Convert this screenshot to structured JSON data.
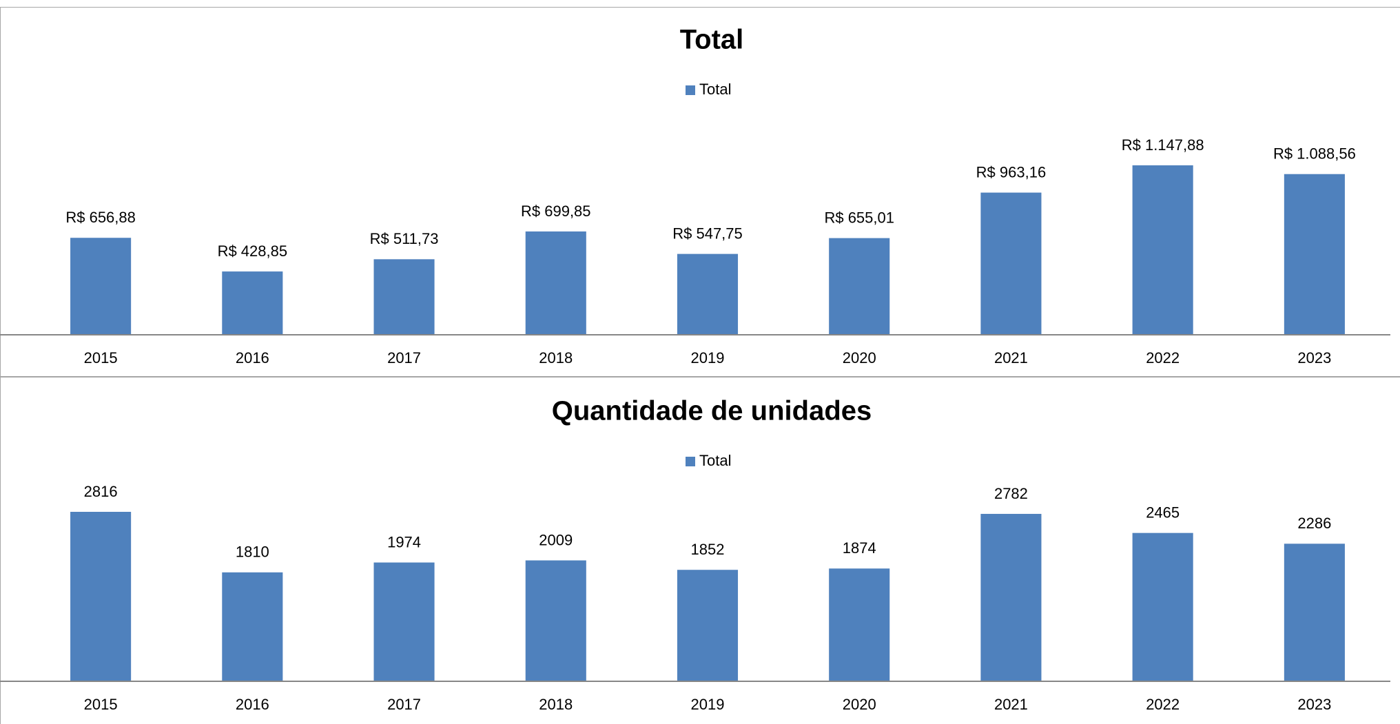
{
  "chart_data": [
    {
      "type": "bar",
      "title": "Total",
      "categories": [
        "2015",
        "2016",
        "2017",
        "2018",
        "2019",
        "2020",
        "2021",
        "2022",
        "2023"
      ],
      "series": [
        {
          "name": "Total",
          "color": "#4f81bd",
          "values": [
            656.88,
            428.85,
            511.73,
            699.85,
            547.75,
            655.01,
            963.16,
            1147.88,
            1088.56
          ],
          "value_labels": [
            "R$ 656,88",
            "R$ 428,85",
            "R$ 511,73",
            "R$ 699,85",
            "R$ 547,75",
            "R$ 655,01",
            "R$ 963,16",
            "R$ 1.147,88",
            "R$ 1.088,56"
          ]
        }
      ]
    },
    {
      "type": "bar",
      "title": "Quantidade de unidades",
      "categories": [
        "2015",
        "2016",
        "2017",
        "2018",
        "2019",
        "2020",
        "2021",
        "2022",
        "2023"
      ],
      "series": [
        {
          "name": "Total",
          "color": "#4f81bd",
          "values": [
            2816,
            1810,
            1974,
            2009,
            1852,
            1874,
            2782,
            2465,
            2286
          ]
        }
      ]
    }
  ]
}
